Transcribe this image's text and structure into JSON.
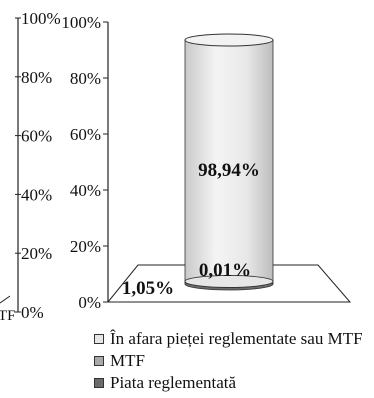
{
  "chart_data": {
    "type": "bar",
    "subtype": "3d-cylinder-stacked-100",
    "ylim": [
      0,
      100
    ],
    "yticks": [
      "0%",
      "20%",
      "40%",
      "60%",
      "80%",
      "100%"
    ],
    "left_partial_axis": {
      "ticks": [
        "0%",
        "20%",
        "40%",
        "60%",
        "80%",
        "100%"
      ],
      "category_fragment": "TF"
    },
    "series": [
      {
        "name": "Piata reglementată",
        "value": 1.05,
        "label": "1,05%",
        "color": "#6b6b6b"
      },
      {
        "name": "MTF",
        "value": 0.01,
        "label": "0,01%",
        "color": "#a9a9a9"
      },
      {
        "name": "În afara pieței reglementate sau MTF",
        "value": 98.94,
        "label": "98,94%",
        "color": "#e6e6e6"
      }
    ],
    "legend_order": [
      2,
      1,
      0
    ],
    "legend_position": "bottom",
    "grid": false
  },
  "colors": {
    "axis": "#222222",
    "cylinder_light": "#eeeeee",
    "cylinder_shadow": "#c4c4c4",
    "floor": "#ffffff"
  }
}
